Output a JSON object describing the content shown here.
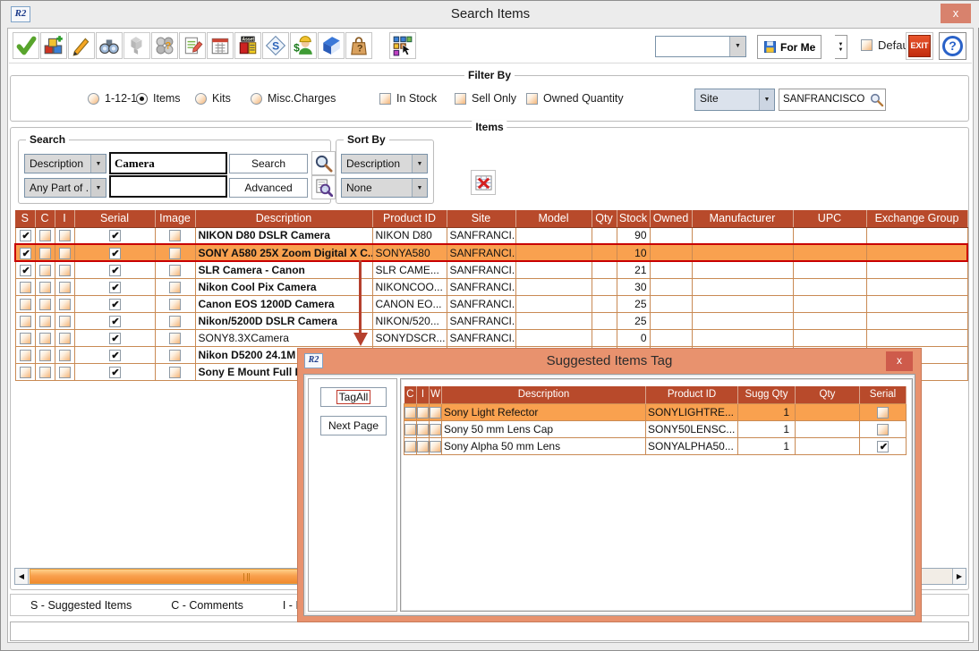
{
  "window": {
    "title": "Search Items",
    "app_icon": "R2",
    "close_glyph": "x"
  },
  "toolbar": {
    "buttons": [
      {
        "icon": "checkmark-icon"
      },
      {
        "icon": "add-item-cubes-icon"
      },
      {
        "icon": "pencil-icon"
      },
      {
        "icon": "binoculars-icon"
      },
      {
        "icon": "cubes-gray-icon",
        "disabled": true
      },
      {
        "icon": "spheres-question-icon"
      },
      {
        "icon": "notepad-pencil-icon"
      },
      {
        "icon": "calendar-icon"
      },
      {
        "icon": "asset-register-icon"
      },
      {
        "icon": "price-tag-icon"
      },
      {
        "icon": "worker-dollar-icon"
      },
      {
        "icon": "blue-book-icon"
      },
      {
        "icon": "bag-question-icon"
      },
      {
        "icon": "colored-squares-cursor-icon",
        "gap": true
      }
    ],
    "preset_combo_value": "",
    "for_me_label": "For Me",
    "default_label": "Default",
    "default_checked": false,
    "exit_label": "EXIT",
    "help_glyph": "?"
  },
  "filter": {
    "group_label": "Filter By",
    "radios": [
      {
        "label": "1-12-16",
        "selected": false
      },
      {
        "label": "Items",
        "selected": true
      },
      {
        "label": "Kits",
        "selected": false
      },
      {
        "label": "Misc.Charges",
        "selected": false
      }
    ],
    "checkboxes": [
      {
        "label": "In Stock",
        "checked": false
      },
      {
        "label": "Sell Only",
        "checked": false
      },
      {
        "label": "Owned Quantity",
        "checked": false
      }
    ],
    "site_combo_value": "Site",
    "site_value": "SANFRANCISCO"
  },
  "items": {
    "group_label": "Items",
    "search": {
      "group_label": "Search",
      "field_combo": "Description",
      "match_combo": "Any Part of ...",
      "query": "Camera",
      "query2": "",
      "search_label": "Search",
      "advanced_label": "Advanced"
    },
    "sort": {
      "group_label": "Sort By",
      "primary": "Description",
      "secondary": "None"
    },
    "table": {
      "headers": [
        "S",
        "C",
        "I",
        "Serial",
        "Image",
        "Description",
        "Product ID",
        "Site",
        "Model",
        "Qty",
        "Stock",
        "Owned",
        "Manufacturer",
        "UPC",
        "Exchange Group"
      ],
      "rows": [
        {
          "s": true,
          "c": false,
          "i": false,
          "serial": true,
          "image": false,
          "description": "NIKON D80 DSLR Camera",
          "bold": true,
          "product_id": "NIKON D80",
          "site": "SANFRANCI...",
          "model": "",
          "qty": "",
          "stock": "90",
          "owned": "",
          "manufacturer": "",
          "upc": "",
          "exchange_group": "",
          "selected": false
        },
        {
          "s": true,
          "c": false,
          "i": false,
          "serial": true,
          "image": false,
          "description": "SONY A580 25X Zoom Digital X C...",
          "bold": true,
          "product_id": "SONYA580",
          "site": "SANFRANCI...",
          "model": "",
          "qty": "",
          "stock": "10",
          "owned": "",
          "manufacturer": "",
          "upc": "",
          "exchange_group": "",
          "selected": true
        },
        {
          "s": true,
          "c": false,
          "i": false,
          "serial": true,
          "image": false,
          "description": "SLR Camera - Canon",
          "bold": true,
          "product_id": "SLR CAME...",
          "site": "SANFRANCI...",
          "model": "",
          "qty": "",
          "stock": "21",
          "owned": "",
          "manufacturer": "",
          "upc": "",
          "exchange_group": "",
          "selected": false
        },
        {
          "s": false,
          "c": false,
          "i": false,
          "serial": true,
          "image": false,
          "description": "Nikon Cool Pix Camera",
          "bold": true,
          "product_id": "NIKONCOO...",
          "site": "SANFRANCI...",
          "model": "",
          "qty": "",
          "stock": "30",
          "owned": "",
          "manufacturer": "",
          "upc": "",
          "exchange_group": "",
          "selected": false
        },
        {
          "s": false,
          "c": false,
          "i": false,
          "serial": true,
          "image": false,
          "description": "Canon EOS 1200D Camera",
          "bold": true,
          "product_id": "CANON EO...",
          "site": "SANFRANCI...",
          "model": "",
          "qty": "",
          "stock": "25",
          "owned": "",
          "manufacturer": "",
          "upc": "",
          "exchange_group": "",
          "selected": false
        },
        {
          "s": false,
          "c": false,
          "i": false,
          "serial": true,
          "image": false,
          "description": "Nikon/5200D DSLR Camera",
          "bold": true,
          "product_id": "NIKON/520...",
          "site": "SANFRANCI...",
          "model": "",
          "qty": "",
          "stock": "25",
          "owned": "",
          "manufacturer": "",
          "upc": "",
          "exchange_group": "",
          "selected": false
        },
        {
          "s": false,
          "c": false,
          "i": false,
          "serial": true,
          "image": false,
          "description": "SONY8.3XCamera",
          "bold": false,
          "product_id": "SONYDSCR...",
          "site": "SANFRANCI...",
          "model": "",
          "qty": "",
          "stock": "0",
          "owned": "",
          "manufacturer": "",
          "upc": "",
          "exchange_group": "",
          "selected": false
        },
        {
          "s": false,
          "c": false,
          "i": false,
          "serial": true,
          "image": false,
          "description": "Nikon D5200 24.1M",
          "bold": true,
          "product_id": "",
          "site": "",
          "model": "",
          "qty": "",
          "stock": "",
          "owned": "",
          "manufacturer": "",
          "upc": "",
          "exchange_group": "",
          "selected": false
        },
        {
          "s": false,
          "c": false,
          "i": false,
          "serial": true,
          "image": false,
          "description": "Sony E Mount Full F",
          "bold": true,
          "product_id": "",
          "site": "",
          "model": "",
          "qty": "",
          "stock": "",
          "owned": "",
          "manufacturer": "",
          "upc": "",
          "exchange_group": "",
          "selected": false
        }
      ]
    },
    "legend": [
      "S - Suggested Items",
      "C - Comments",
      "I - Instructions"
    ]
  },
  "popup": {
    "title": "Suggested Items Tag",
    "app_icon": "R2",
    "close_glyph": "x",
    "tag_all_label": "TagAll",
    "next_page_label": "Next Page",
    "table": {
      "headers": [
        "C",
        "I",
        "W",
        "Description",
        "Product ID",
        "Sugg Qty",
        "Qty",
        "Serial"
      ],
      "rows": [
        {
          "c": false,
          "i": false,
          "w": false,
          "description": "Sony Light Refector",
          "product_id": "SONYLIGHTRE...",
          "sugg_qty": "1",
          "qty": "",
          "serial": false,
          "selected": true
        },
        {
          "c": false,
          "i": false,
          "w": false,
          "description": "Sony 50 mm Lens Cap",
          "product_id": "SONY50LENSC...",
          "sugg_qty": "1",
          "qty": "",
          "serial": false,
          "selected": false
        },
        {
          "c": false,
          "i": false,
          "w": false,
          "description": "Sony Alpha 50 mm Lens",
          "product_id": "SONYALPHA50...",
          "sugg_qty": "1",
          "qty": "",
          "serial": true,
          "selected": false
        }
      ]
    }
  },
  "colors": {
    "table_header": "#b84a2b",
    "selection_orange": "#f9a14f",
    "selection_border": "#cc0000",
    "grid_line": "#c98a54",
    "popup_frame": "#e8926e",
    "popup_close": "#ce5b4b",
    "exit_red": "#d53a1a"
  }
}
